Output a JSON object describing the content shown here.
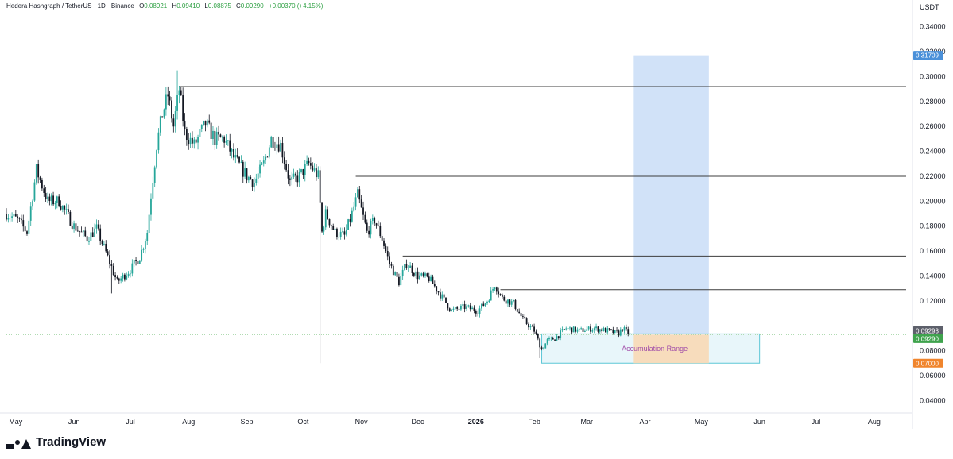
{
  "header": {
    "symbol": "Hedera Hashgraph / TetherUS · 1D · Binance",
    "o_label": "O",
    "o_value": "0.08921",
    "h_label": "H",
    "h_value": "0.09410",
    "l_label": "L",
    "l_value": "0.08875",
    "c_label": "C",
    "c_value": "0.09290",
    "change": "+0.00370 (+4.15%)"
  },
  "brand": "TradingView",
  "colors": {
    "up": "#26a69a",
    "down": "#131722",
    "accent_green": "#2ea043",
    "projection_box": "#c9ddf7",
    "accumulation_fill": "#e8f6fa",
    "accumulation_border": "#5cc7d6",
    "orange_zone": "#f8d9b5",
    "label_purple": "#a04ca8",
    "tag_blue": "#4a90d9",
    "tag_dark": "#5d606b",
    "tag_green": "#3fa34d",
    "tag_orange": "#f0852d"
  },
  "chart_data": {
    "type": "candlestick",
    "title": "Hedera Hashgraph / TetherUS · 1D · Binance",
    "ylabel": "USDT",
    "ylim": [
      0.03,
      0.35
    ],
    "xlim": [
      "2025-04-26",
      "2026-08-18"
    ],
    "y_ticks": [
      "0.34000",
      "0.32000",
      "0.30000",
      "0.28000",
      "0.26000",
      "0.24000",
      "0.22000",
      "0.20000",
      "0.18000",
      "0.16000",
      "0.14000",
      "0.12000",
      "0.08000",
      "0.06000",
      "0.04000"
    ],
    "x_ticks": [
      {
        "label": "May",
        "date": "2025-05-01"
      },
      {
        "label": "Jun",
        "date": "2025-06-01"
      },
      {
        "label": "Jul",
        "date": "2025-07-01"
      },
      {
        "label": "Aug",
        "date": "2025-08-01"
      },
      {
        "label": "Sep",
        "date": "2025-09-01"
      },
      {
        "label": "Oct",
        "date": "2025-10-01"
      },
      {
        "label": "Nov",
        "date": "2025-11-01"
      },
      {
        "label": "Dec",
        "date": "2025-12-01"
      },
      {
        "label": "2026",
        "date": "2026-01-01"
      },
      {
        "label": "Feb",
        "date": "2026-02-01"
      },
      {
        "label": "Mar",
        "date": "2026-03-01"
      },
      {
        "label": "Apr",
        "date": "2026-04-01"
      },
      {
        "label": "May",
        "date": "2026-05-01"
      },
      {
        "label": "Jun",
        "date": "2026-06-01"
      },
      {
        "label": "Jul",
        "date": "2026-07-01"
      },
      {
        "label": "Aug",
        "date": "2026-08-01"
      }
    ],
    "price_path": [
      {
        "date": "2025-04-26",
        "close": 0.19
      },
      {
        "date": "2025-05-02",
        "close": 0.185
      },
      {
        "date": "2025-05-07",
        "close": 0.175
      },
      {
        "date": "2025-05-12",
        "close": 0.225
      },
      {
        "date": "2025-05-18",
        "close": 0.2
      },
      {
        "date": "2025-05-24",
        "close": 0.2
      },
      {
        "date": "2025-06-01",
        "close": 0.18
      },
      {
        "date": "2025-06-08",
        "close": 0.17
      },
      {
        "date": "2025-06-13",
        "close": 0.178
      },
      {
        "date": "2025-06-19",
        "close": 0.155
      },
      {
        "date": "2025-06-24",
        "close": 0.135
      },
      {
        "date": "2025-07-01",
        "close": 0.145
      },
      {
        "date": "2025-07-06",
        "close": 0.155
      },
      {
        "date": "2025-07-10",
        "close": 0.175
      },
      {
        "date": "2025-07-12",
        "close": 0.205
      },
      {
        "date": "2025-07-15",
        "close": 0.245
      },
      {
        "date": "2025-07-18",
        "close": 0.27
      },
      {
        "date": "2025-07-21",
        "close": 0.285
      },
      {
        "date": "2025-07-24",
        "close": 0.26
      },
      {
        "date": "2025-07-27",
        "close": 0.29
      },
      {
        "date": "2025-07-30",
        "close": 0.255
      },
      {
        "date": "2025-08-04",
        "close": 0.245
      },
      {
        "date": "2025-08-10",
        "close": 0.262
      },
      {
        "date": "2025-08-15",
        "close": 0.25
      },
      {
        "date": "2025-08-20",
        "close": 0.25
      },
      {
        "date": "2025-08-25",
        "close": 0.235
      },
      {
        "date": "2025-09-01",
        "close": 0.22
      },
      {
        "date": "2025-09-05",
        "close": 0.215
      },
      {
        "date": "2025-09-10",
        "close": 0.23
      },
      {
        "date": "2025-09-14",
        "close": 0.25
      },
      {
        "date": "2025-09-19",
        "close": 0.245
      },
      {
        "date": "2025-09-24",
        "close": 0.215
      },
      {
        "date": "2025-09-29",
        "close": 0.22
      },
      {
        "date": "2025-10-04",
        "close": 0.23
      },
      {
        "date": "2025-10-09",
        "close": 0.22
      },
      {
        "date": "2025-10-11",
        "close": 0.175
      },
      {
        "date": "2025-10-13",
        "close": 0.19
      },
      {
        "date": "2025-10-18",
        "close": 0.175
      },
      {
        "date": "2025-10-23",
        "close": 0.172
      },
      {
        "date": "2025-10-27",
        "close": 0.19
      },
      {
        "date": "2025-10-30",
        "close": 0.205
      },
      {
        "date": "2025-11-04",
        "close": 0.175
      },
      {
        "date": "2025-11-08",
        "close": 0.185
      },
      {
        "date": "2025-11-12",
        "close": 0.17
      },
      {
        "date": "2025-11-16",
        "close": 0.15
      },
      {
        "date": "2025-11-21",
        "close": 0.135
      },
      {
        "date": "2025-11-25",
        "close": 0.15
      },
      {
        "date": "2025-12-01",
        "close": 0.14
      },
      {
        "date": "2025-12-07",
        "close": 0.138
      },
      {
        "date": "2025-12-13",
        "close": 0.125
      },
      {
        "date": "2025-12-19",
        "close": 0.112
      },
      {
        "date": "2025-12-26",
        "close": 0.115
      },
      {
        "date": "2026-01-02",
        "close": 0.112
      },
      {
        "date": "2026-01-07",
        "close": 0.12
      },
      {
        "date": "2026-01-11",
        "close": 0.133
      },
      {
        "date": "2026-01-15",
        "close": 0.122
      },
      {
        "date": "2026-01-21",
        "close": 0.118
      },
      {
        "date": "2026-01-26",
        "close": 0.105
      },
      {
        "date": "2026-02-01",
        "close": 0.096
      },
      {
        "date": "2026-02-05",
        "close": 0.081
      },
      {
        "date": "2026-02-08",
        "close": 0.088
      },
      {
        "date": "2026-02-12",
        "close": 0.09
      },
      {
        "date": "2026-02-18",
        "close": 0.098
      },
      {
        "date": "2026-02-25",
        "close": 0.096
      },
      {
        "date": "2026-03-05",
        "close": 0.098
      },
      {
        "date": "2026-03-12",
        "close": 0.096
      },
      {
        "date": "2026-03-18",
        "close": 0.094
      },
      {
        "date": "2026-03-20",
        "close": 0.098
      },
      {
        "date": "2026-03-24",
        "close": 0.0929
      }
    ],
    "spikes": [
      {
        "date": "2025-07-26",
        "high": 0.305
      },
      {
        "date": "2025-10-10",
        "low": 0.07
      },
      {
        "date": "2025-06-21",
        "low": 0.126
      },
      {
        "date": "2026-02-04",
        "low": 0.074
      }
    ],
    "resistance_levels": [
      {
        "value": 0.292,
        "from": "2025-07-27"
      },
      {
        "value": 0.22,
        "from": "2025-10-29"
      },
      {
        "value": 0.156,
        "from": "2025-11-23"
      },
      {
        "value": 0.129,
        "from": "2026-01-14"
      }
    ],
    "current_price_line": 0.0929,
    "projection_box": {
      "from": "2026-03-26",
      "to": "2026-05-05",
      "top": 0.31709,
      "bottom": 0.0929
    },
    "accumulation_range": {
      "label": "Accumulation Range",
      "from": "2026-02-05",
      "to": "2026-06-01",
      "top": 0.0935,
      "bottom": 0.07
    },
    "orange_zone": {
      "from": "2026-03-26",
      "to": "2026-05-05",
      "top": 0.0929,
      "bottom": 0.07
    },
    "price_tags": [
      {
        "value": 0.31709,
        "text": "0.31709",
        "color": "#4a90d9"
      },
      {
        "value": 0.09293,
        "text": "0.09293",
        "color": "#5d606b"
      },
      {
        "value": 0.0929,
        "text": "0.09290",
        "color": "#3fa34d"
      },
      {
        "value": 0.07,
        "text": "0.07000",
        "color": "#f0852d"
      }
    ]
  }
}
